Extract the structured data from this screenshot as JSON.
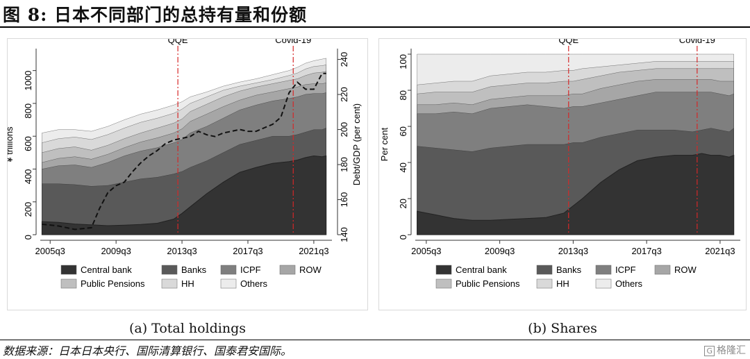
{
  "figure_title": "图 8:  日本不同部门的总持有量和份额",
  "source": "数据来源：日本日本央行、国际清算银行、国泰君安国际。",
  "watermark": "格隆汇",
  "watermark_box": "G",
  "colors": {
    "Central bank": "#333333",
    "Banks": "#595959",
    "ICPF": "#7f7f7f",
    "ROW": "#a6a6a6",
    "Public Pensions": "#bfbfbf",
    "HH": "#d9d9d9",
    "Others": "#ececec",
    "event_line": "#d62728",
    "debt_line": "#111111"
  },
  "chart_data": [
    {
      "type": "area",
      "caption": "(a) Total holdings",
      "ylabel": "¥ trillions",
      "y2label": "Debt/GDP (per cent)",
      "x_ticks": [
        "2005q3",
        "2009q3",
        "2013q3",
        "2017q3",
        "2021q3"
      ],
      "x_tick_pos": [
        2005.5,
        2009.5,
        2013.5,
        2017.5,
        2021.5
      ],
      "xlim": [
        2004.9,
        2022.6
      ],
      "ylim": [
        0,
        1100
      ],
      "y_ticks": [
        0,
        200,
        400,
        600,
        800,
        1000
      ],
      "y2lim": [
        140,
        243
      ],
      "y2_ticks": [
        140,
        160,
        180,
        200,
        220,
        240
      ],
      "events": [
        {
          "label": "QQE",
          "x": 2013.25
        },
        {
          "label": "Covid-19",
          "x": 2020.25
        }
      ],
      "x": [
        2005.0,
        2006.0,
        2007.0,
        2008.0,
        2009.0,
        2010.0,
        2011.0,
        2012.0,
        2013.0,
        2013.5,
        2014.0,
        2015.0,
        2016.0,
        2017.0,
        2018.0,
        2019.0,
        2020.0,
        2020.5,
        2021.0,
        2021.5,
        2022.0,
        2022.25
      ],
      "series": [
        {
          "name": "Central bank",
          "values": [
            80,
            75,
            65,
            60,
            55,
            58,
            62,
            70,
            95,
            130,
            170,
            250,
            320,
            380,
            410,
            435,
            445,
            455,
            470,
            480,
            475,
            480
          ]
        },
        {
          "name": "Banks",
          "values": [
            310,
            310,
            305,
            295,
            300,
            320,
            340,
            350,
            370,
            385,
            410,
            450,
            500,
            550,
            575,
            600,
            600,
            610,
            625,
            640,
            640,
            650
          ]
        },
        {
          "name": "ICPF",
          "values": [
            400,
            420,
            425,
            410,
            440,
            480,
            510,
            530,
            560,
            580,
            620,
            660,
            710,
            760,
            790,
            815,
            830,
            840,
            855,
            860,
            860,
            865
          ]
        },
        {
          "name": "ROW",
          "values": [
            440,
            465,
            475,
            460,
            490,
            530,
            565,
            590,
            620,
            645,
            690,
            735,
            780,
            820,
            850,
            870,
            890,
            900,
            915,
            920,
            920,
            925
          ]
        },
        {
          "name": "Public Pensions",
          "values": [
            500,
            525,
            535,
            515,
            545,
            585,
            620,
            650,
            680,
            705,
            750,
            795,
            840,
            875,
            900,
            920,
            940,
            950,
            970,
            985,
            990,
            995
          ]
        },
        {
          "name": "HH",
          "values": [
            560,
            585,
            595,
            580,
            610,
            650,
            685,
            710,
            740,
            765,
            800,
            840,
            880,
            905,
            925,
            945,
            970,
            985,
            1010,
            1025,
            1030,
            1035
          ]
        },
        {
          "name": "Others",
          "values": [
            620,
            640,
            640,
            630,
            660,
            700,
            735,
            760,
            790,
            810,
            840,
            870,
            905,
            930,
            950,
            975,
            1000,
            1020,
            1045,
            1060,
            1070,
            1075
          ]
        }
      ],
      "debt_gdp": {
        "name": "Debt/GDP",
        "x": [
          2005.0,
          2006.0,
          2007.0,
          2008.0,
          2008.5,
          2009.0,
          2009.5,
          2010.0,
          2010.5,
          2011.0,
          2011.5,
          2012.0,
          2012.5,
          2013.0,
          2013.5,
          2014.0,
          2014.5,
          2015.0,
          2015.5,
          2016.0,
          2016.5,
          2017.0,
          2017.5,
          2018.0,
          2018.5,
          2019.0,
          2019.5,
          2020.0,
          2020.5,
          2021.0,
          2021.5,
          2022.0,
          2022.25
        ],
        "values": [
          146,
          145,
          143,
          144,
          155,
          164,
          168,
          170,
          176,
          181,
          185,
          188,
          192,
          194,
          195,
          196,
          199,
          197,
          196,
          198,
          199,
          200,
          199,
          199,
          201,
          203,
          207,
          221,
          227,
          223,
          223,
          232,
          232
        ]
      }
    },
    {
      "type": "area",
      "caption": "(b) Shares",
      "ylabel": "Per cent",
      "x_ticks": [
        "2005q3",
        "2009q3",
        "2013q3",
        "2017q3",
        "2021q3"
      ],
      "x_tick_pos": [
        2005.5,
        2009.5,
        2013.5,
        2017.5,
        2021.5
      ],
      "xlim": [
        2004.9,
        2022.6
      ],
      "ylim": [
        0,
        100
      ],
      "y_ticks": [
        0,
        20,
        40,
        60,
        80,
        100
      ],
      "events": [
        {
          "label": "QQE",
          "x": 2013.25
        },
        {
          "label": "Covid-19",
          "x": 2020.25
        }
      ],
      "x": [
        2005.0,
        2006.0,
        2007.0,
        2008.0,
        2009.0,
        2010.0,
        2011.0,
        2012.0,
        2013.0,
        2013.5,
        2014.0,
        2015.0,
        2016.0,
        2017.0,
        2018.0,
        2019.0,
        2020.0,
        2020.5,
        2021.0,
        2021.5,
        2022.0,
        2022.25
      ],
      "series": [
        {
          "name": "Central bank",
          "values": [
            13,
            11,
            9,
            8,
            8,
            8.5,
            9,
            9.5,
            12,
            16,
            20,
            29,
            36,
            41,
            43,
            44,
            44,
            45,
            44,
            44,
            43,
            44
          ]
        },
        {
          "name": "Banks",
          "values": [
            49,
            48,
            47,
            46,
            48,
            49,
            50,
            50,
            50,
            51,
            51,
            54,
            56,
            58,
            58,
            58,
            57,
            58,
            59,
            58,
            57,
            59
          ]
        },
        {
          "name": "ICPF",
          "values": [
            67,
            67,
            68,
            67,
            70,
            71,
            72,
            71,
            70,
            71,
            71,
            73,
            75,
            77,
            79,
            79,
            79,
            79,
            79,
            78,
            77,
            78
          ]
        },
        {
          "name": "ROW",
          "values": [
            72,
            72,
            73,
            72,
            75,
            76,
            77,
            77,
            77,
            78,
            78,
            81,
            83,
            85,
            86,
            86,
            86,
            86,
            86,
            85,
            85,
            85
          ]
        },
        {
          "name": "Public Pensions",
          "values": [
            78,
            79,
            79,
            79,
            82,
            83,
            84,
            84,
            85,
            85,
            86,
            88,
            90,
            91,
            92,
            92,
            92,
            92,
            92,
            92,
            92,
            92
          ]
        },
        {
          "name": "HH",
          "values": [
            83,
            84,
            85,
            85,
            88,
            89,
            90,
            90,
            91,
            91,
            92,
            93,
            94,
            95,
            96,
            96,
            96,
            96,
            96,
            96,
            96,
            96
          ]
        },
        {
          "name": "Others",
          "values": [
            100,
            100,
            100,
            100,
            100,
            100,
            100,
            100,
            100,
            100,
            100,
            100,
            100,
            100,
            100,
            100,
            100,
            100,
            100,
            100,
            100,
            100
          ]
        }
      ]
    }
  ],
  "legend": [
    "Central bank",
    "Banks",
    "ICPF",
    "ROW",
    "Public Pensions",
    "HH",
    "Others"
  ]
}
